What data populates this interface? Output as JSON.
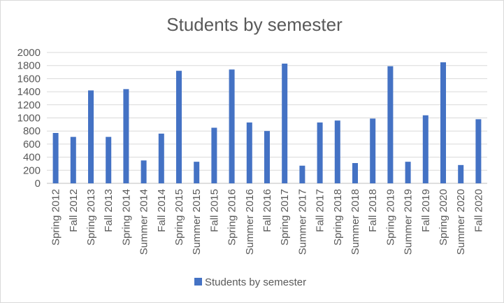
{
  "chart_data": {
    "type": "bar",
    "title": "Students by semester",
    "xlabel": "",
    "ylabel": "",
    "ylim": [
      0,
      2000
    ],
    "yticks": [
      0,
      200,
      400,
      600,
      800,
      1000,
      1200,
      1400,
      1600,
      1800,
      2000
    ],
    "grid": true,
    "legend_position": "bottom",
    "categories": [
      "Spring 2012",
      "Fall 2012",
      "Spring 2013",
      "Fall 2013",
      "Spring 2014",
      "Summer 2014",
      "Fall 2014",
      "Spring 2015",
      "Summer 2015",
      "Fall 2015",
      "Spring 2016",
      "Summer 2016",
      "Fall 2016",
      "Spring 2017",
      "Summer 2017",
      "Fall 2017",
      "Spring 2018",
      "Summer 2018",
      "Fall 2018",
      "Spring 2019",
      "Summer 2019",
      "Fall 2019",
      "Spring 2020",
      "Summer 2020",
      "Fall 2020"
    ],
    "series": [
      {
        "name": "Students by semester",
        "color": "#4472c4",
        "values": [
          770,
          710,
          1420,
          710,
          1440,
          350,
          760,
          1720,
          330,
          850,
          1740,
          930,
          800,
          1830,
          270,
          930,
          960,
          310,
          990,
          1790,
          330,
          1040,
          1850,
          280,
          980
        ]
      }
    ]
  }
}
